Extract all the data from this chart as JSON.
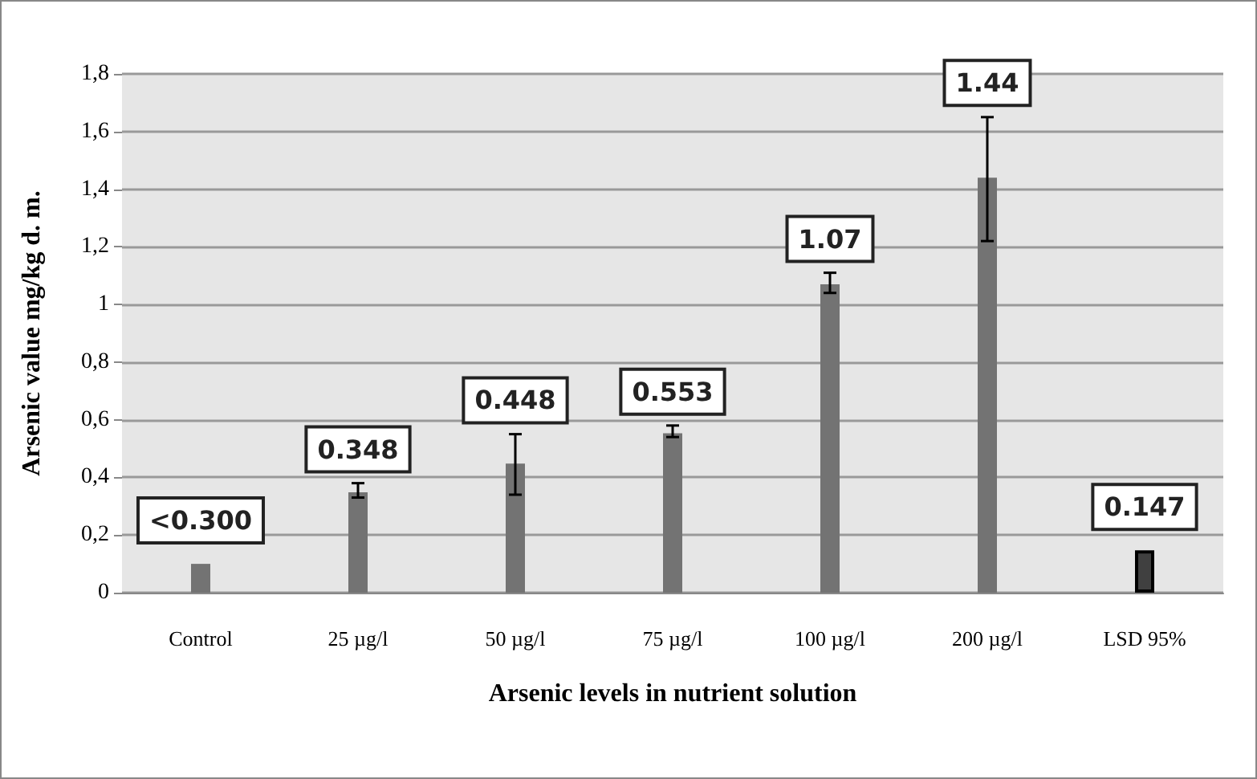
{
  "chart_data": {
    "type": "bar",
    "xlabel": "Arsenic levels in nutrient solution",
    "ylabel": "Arsenic value mg/kg d. m.",
    "categories": [
      "Control",
      "25 µg/l",
      "50 µg/l",
      "75 µg/l",
      "100 µg/l",
      "200 µg/l",
      "LSD 95%"
    ],
    "values": [
      0.1,
      0.348,
      0.448,
      0.553,
      1.07,
      1.44,
      0.147
    ],
    "colors": [
      "#737373",
      "#737373",
      "#737373",
      "#737373",
      "#737373",
      "#737373",
      "#404040"
    ],
    "value_labels": [
      "<0.300",
      "0.348",
      "0.448",
      "0.553",
      "1.07",
      "1.44",
      "0.147"
    ],
    "errors": [
      null,
      [
        0.33,
        0.38
      ],
      [
        0.34,
        0.55
      ],
      [
        0.54,
        0.58
      ],
      [
        1.04,
        1.11
      ],
      [
        1.22,
        1.65
      ],
      null
    ],
    "ylim": [
      0,
      1.8
    ],
    "yticks": [
      {
        "value": 0,
        "label": "0"
      },
      {
        "value": 0.2,
        "label": "0,2"
      },
      {
        "value": 0.4,
        "label": "0,4"
      },
      {
        "value": 0.6,
        "label": "0,6"
      },
      {
        "value": 0.8,
        "label": "0,8"
      },
      {
        "value": 1,
        "label": "1"
      },
      {
        "value": 1.2,
        "label": "1,2"
      },
      {
        "value": 1.4,
        "label": "1,4"
      },
      {
        "value": 1.6,
        "label": "1,6"
      },
      {
        "value": 1.8,
        "label": "1,8"
      }
    ],
    "grid": "y"
  }
}
